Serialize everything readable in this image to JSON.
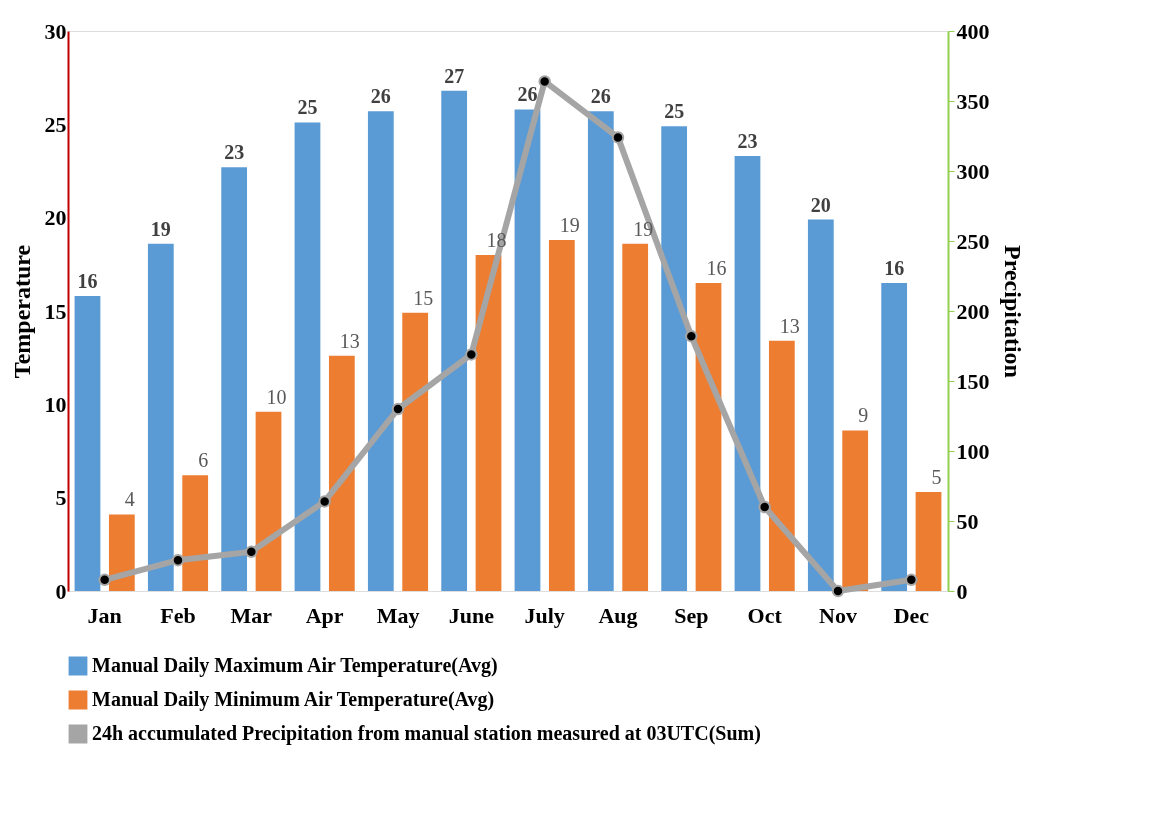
{
  "chart_data": {
    "type": "bar",
    "ylabel": "Temperature",
    "y2label": "Precipitation",
    "categories": [
      "Jan",
      "Feb",
      "Mar",
      "Apr",
      "May",
      "June",
      "July",
      "Aug",
      "Sep",
      "Oct",
      "Nov",
      "Dec"
    ],
    "series": [
      {
        "name": "Manual Daily Maximum Air Temperature(Avg)",
        "color": "#5b9bd5",
        "values": [
          15.8,
          18.6,
          22.7,
          25.1,
          25.7,
          26.8,
          25.8,
          25.7,
          24.9,
          23.3,
          19.9,
          16.5
        ],
        "value_labels": [
          "16",
          "19",
          "23",
          "25",
          "26",
          "27",
          "26",
          "26",
          "25",
          "23",
          "20",
          "16"
        ]
      },
      {
        "name": "Manual Daily Minimum Air Temperature(Avg)",
        "color": "#ed7d31",
        "values": [
          4.1,
          6.2,
          9.6,
          12.6,
          14.9,
          18.0,
          18.8,
          18.6,
          16.5,
          13.4,
          8.6,
          5.3
        ],
        "value_labels": [
          "4",
          "6",
          "10",
          "13",
          "15",
          "18",
          "19",
          "19",
          "16",
          "13",
          "9",
          "5"
        ]
      },
      {
        "name": "24h accumulated Precipitation from manual station measured at 03UTC(Sum)",
        "type": "line",
        "axis": "y2",
        "color": "#a5a5a5",
        "marker": "circle",
        "line_style": "solid",
        "values": [
          8,
          22,
          28,
          64,
          130,
          169,
          364,
          324,
          182,
          60,
          0,
          8
        ]
      }
    ],
    "ylim": [
      0,
      30
    ],
    "yticks": [
      0,
      5,
      10,
      15,
      20,
      25,
      30
    ],
    "y2lim": [
      0,
      400
    ],
    "y2ticks": [
      0,
      50,
      100,
      150,
      200,
      250,
      300,
      350,
      400
    ],
    "grid": false,
    "legend": "bottom"
  }
}
